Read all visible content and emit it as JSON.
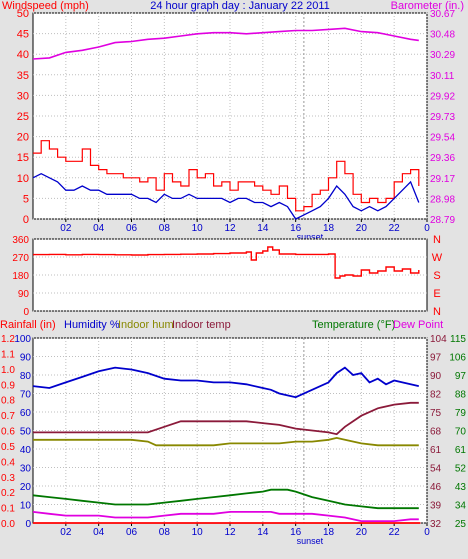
{
  "chart_data": [
    {
      "type": "line",
      "title": "24 hour graph day : January 22 2011",
      "ylabel": "Windspeed (mph)",
      "y2label": "Barometer (in.)",
      "x_tick_labels": [
        "02",
        "04",
        "06",
        "08",
        "10",
        "12",
        "14",
        "16",
        "18",
        "20",
        "22",
        "0"
      ],
      "marker_label": "sunset",
      "marker_x": 16.5,
      "xlim": [
        0,
        24
      ],
      "ylim": [
        0,
        50
      ],
      "y_ticks": [
        0,
        5,
        10,
        15,
        20,
        25,
        30,
        35,
        40,
        45,
        50
      ],
      "y2lim": [
        28.79,
        30.67
      ],
      "y2_ticks": [
        "28.79",
        "28.98",
        "29.17",
        "29.36",
        "29.54",
        "29.73",
        "29.92",
        "30.11",
        "30.29",
        "30.48",
        "30.67"
      ],
      "grid": true,
      "colors": {
        "wind_axis": "#ff0000",
        "baro_axis": "#e000e0",
        "gust": "#ff0000",
        "wind": "#0000cc",
        "barometer": "#e000e0",
        "title": "#0000cc"
      },
      "series": [
        {
          "axis": "y2",
          "x": [
            0,
            1,
            2,
            3,
            4,
            5,
            6,
            7,
            8,
            9,
            10,
            11,
            12,
            13,
            14,
            15,
            16,
            17,
            18,
            19,
            20,
            21,
            22,
            23,
            23.5
          ],
          "values": [
            30.25,
            30.26,
            30.31,
            30.33,
            30.36,
            30.4,
            30.41,
            30.43,
            30.44,
            30.46,
            30.48,
            30.49,
            30.49,
            30.48,
            30.49,
            30.5,
            30.51,
            30.51,
            30.52,
            30.53,
            30.5,
            30.49,
            30.46,
            30.43,
            30.42
          ]
        },
        {
          "x": [
            0,
            0.5,
            1,
            1.5,
            2,
            2.5,
            3,
            3.5,
            4,
            4.5,
            5,
            5.5,
            6,
            6.5,
            7,
            7.5,
            8,
            8.5,
            9,
            9.5,
            10,
            10.5,
            11,
            11.5,
            12,
            12.5,
            13,
            13.5,
            14,
            14.5,
            15,
            15.5,
            16,
            16.5,
            17,
            17.5,
            18,
            18.5,
            19,
            19.5,
            20,
            20.5,
            21,
            21.5,
            22,
            22.5,
            23,
            23.5
          ],
          "values": [
            16,
            19,
            17,
            15,
            14,
            14,
            17,
            13,
            12,
            11,
            11,
            10,
            10,
            9,
            10,
            7,
            11,
            9,
            8,
            12,
            10,
            11,
            8,
            9,
            7,
            9,
            9,
            8,
            7,
            6,
            8,
            5,
            2,
            3,
            6,
            7,
            10,
            14,
            11,
            6,
            4,
            5,
            4,
            5,
            9,
            11,
            12,
            8
          ]
        },
        {
          "x": [
            0,
            0.5,
            1,
            1.5,
            2,
            2.5,
            3,
            3.5,
            4,
            4.5,
            5,
            5.5,
            6,
            6.5,
            7,
            7.5,
            8,
            8.5,
            9,
            9.5,
            10,
            10.5,
            11,
            11.5,
            12,
            12.5,
            13,
            13.5,
            14,
            14.5,
            15,
            15.5,
            16,
            16.5,
            17,
            17.5,
            18,
            18.5,
            19,
            19.5,
            20,
            20.5,
            21,
            21.5,
            22,
            22.5,
            23,
            23.5
          ],
          "values": [
            10,
            11,
            10,
            9,
            7,
            7,
            8,
            7,
            7,
            6,
            6,
            6,
            6,
            5,
            5,
            4,
            6,
            5,
            5,
            6,
            5,
            5,
            5,
            5,
            4,
            5,
            5,
            4,
            4,
            3,
            4,
            3,
            0,
            1,
            2,
            3,
            5,
            8,
            6,
            3,
            2,
            3,
            2,
            3,
            5,
            7,
            9,
            4
          ]
        }
      ]
    },
    {
      "type": "line",
      "ylim": [
        0,
        360
      ],
      "y_ticks": [
        0,
        90,
        180,
        270,
        360
      ],
      "compass_labels": [
        "N",
        "W",
        "S",
        "E",
        "N"
      ],
      "colors": {
        "axis": "#ff0000",
        "direction": "#ff0000"
      },
      "series": [
        {
          "x": [
            0,
            1,
            2,
            3,
            4,
            5,
            6,
            7,
            8,
            9,
            10,
            11,
            12,
            13,
            13.3,
            13.6,
            14,
            14.3,
            14.6,
            15,
            16,
            17,
            18,
            18.4,
            18.7,
            19,
            19.5,
            20,
            20.5,
            21,
            21.5,
            22,
            22.5,
            23,
            23.5
          ],
          "values": [
            282,
            283,
            281,
            283,
            282,
            281,
            280,
            282,
            283,
            284,
            285,
            287,
            290,
            295,
            255,
            290,
            300,
            320,
            305,
            285,
            283,
            283,
            285,
            165,
            175,
            180,
            175,
            205,
            190,
            200,
            220,
            200,
            210,
            190,
            205
          ]
        }
      ]
    },
    {
      "type": "line",
      "legend": [
        "Rainfall (in)",
        "Humidity %",
        "Indoor hum",
        "Indoor temp",
        "Temperature (°F)",
        "Dew Point"
      ],
      "rain_axis": {
        "ylim": [
          0,
          1.2
        ],
        "ticks": [
          "0.0",
          "0.1",
          "0.2",
          "0.3",
          "0.4",
          "0.5",
          "0.6",
          "0.7",
          "0.8",
          "0.9",
          "1.0",
          "1.1",
          "1.2"
        ]
      },
      "humidity_axis": {
        "ylim": [
          0,
          100
        ],
        "ticks": [
          "0",
          "10",
          "20",
          "30",
          "40",
          "50",
          "60",
          "70",
          "80",
          "90",
          "100"
        ]
      },
      "temp_axis": {
        "ylim": [
          25,
          115
        ],
        "ticks": [
          "25",
          "34",
          "43",
          "52",
          "61",
          "70",
          "79",
          "88",
          "97",
          "106",
          "115"
        ]
      },
      "temp_axis_2": {
        "ylim": [
          32,
          104
        ],
        "ticks": [
          "32",
          "39",
          "46",
          "54",
          "61",
          "68",
          "75",
          "82",
          "90",
          "97",
          "104"
        ]
      },
      "colors": {
        "rain": "#ff0000",
        "humidity": "#0000cc",
        "indoor_hum": "#888800",
        "indoor_temp": "#8b1a3a",
        "temperature": "#007700",
        "dew_point": "#e000e0"
      },
      "series": [
        {
          "name": "Humidity %",
          "x": [
            0,
            1,
            2,
            3,
            4,
            5,
            6,
            7,
            8,
            9,
            10,
            11,
            12,
            13,
            14,
            14.5,
            15,
            15.5,
            16,
            17,
            18,
            18.5,
            19,
            19.5,
            20,
            20.5,
            21,
            21.5,
            22,
            22.5,
            23,
            23.5
          ],
          "values": [
            74,
            73,
            76,
            79,
            82,
            84,
            83,
            81,
            78,
            77,
            77,
            76,
            76,
            75,
            73,
            72,
            70,
            69,
            68,
            72,
            76,
            81,
            84,
            80,
            81,
            76,
            78,
            75,
            77,
            76,
            75,
            74
          ]
        },
        {
          "name": "Indoor hum",
          "x": [
            0,
            2,
            4,
            6,
            7,
            7.5,
            8,
            9,
            10,
            11,
            12,
            13,
            14,
            15,
            16,
            17,
            18,
            18.5,
            19,
            20,
            21,
            22,
            23,
            23.5
          ],
          "values": [
            45,
            45,
            45,
            45,
            44,
            42,
            42,
            42,
            42,
            42,
            43,
            43,
            43,
            43,
            44,
            44,
            45,
            46,
            45,
            43,
            42,
            42,
            42,
            42
          ]
        },
        {
          "name": "Indoor temp",
          "x": [
            0,
            2,
            4,
            6,
            7,
            8,
            9,
            10,
            11,
            12,
            13,
            14,
            15,
            16,
            17,
            18,
            18.5,
            19,
            20,
            21,
            22,
            23,
            23.5
          ],
          "values": [
            49,
            49,
            49,
            49,
            49,
            52,
            55,
            55,
            55,
            55,
            55,
            54,
            53,
            51,
            50,
            49,
            48,
            52,
            58,
            62,
            64,
            65,
            65
          ]
        },
        {
          "name": "Temperature (°F)",
          "x": [
            0,
            1,
            2,
            3,
            4,
            5,
            6,
            7,
            8,
            9,
            10,
            11,
            12,
            13,
            14,
            14.5,
            15,
            15.5,
            16,
            17,
            18,
            19,
            20,
            21,
            22,
            23,
            23.5
          ],
          "values": [
            15,
            14,
            13,
            12,
            11,
            10,
            10,
            10,
            11,
            12,
            13,
            14,
            15,
            16,
            17,
            18,
            18,
            18,
            17,
            14,
            12,
            10,
            9,
            8,
            8,
            8,
            8
          ]
        },
        {
          "name": "Dew Point",
          "x": [
            0,
            1,
            2,
            3,
            4,
            5,
            6,
            7,
            8,
            9,
            10,
            11,
            12,
            13,
            14,
            14.5,
            15,
            15.5,
            16,
            17,
            18,
            19,
            20,
            21,
            22,
            23,
            23.5
          ],
          "values": [
            6,
            5,
            4,
            4,
            4,
            3,
            3,
            3,
            4,
            5,
            5,
            5,
            6,
            6,
            6,
            6,
            5,
            5,
            5,
            5,
            4,
            3,
            1,
            1,
            1,
            2,
            2
          ]
        },
        {
          "name": "Rainfall (in)",
          "x": [
            0,
            23.6
          ],
          "values": [
            0,
            0
          ]
        }
      ]
    }
  ]
}
